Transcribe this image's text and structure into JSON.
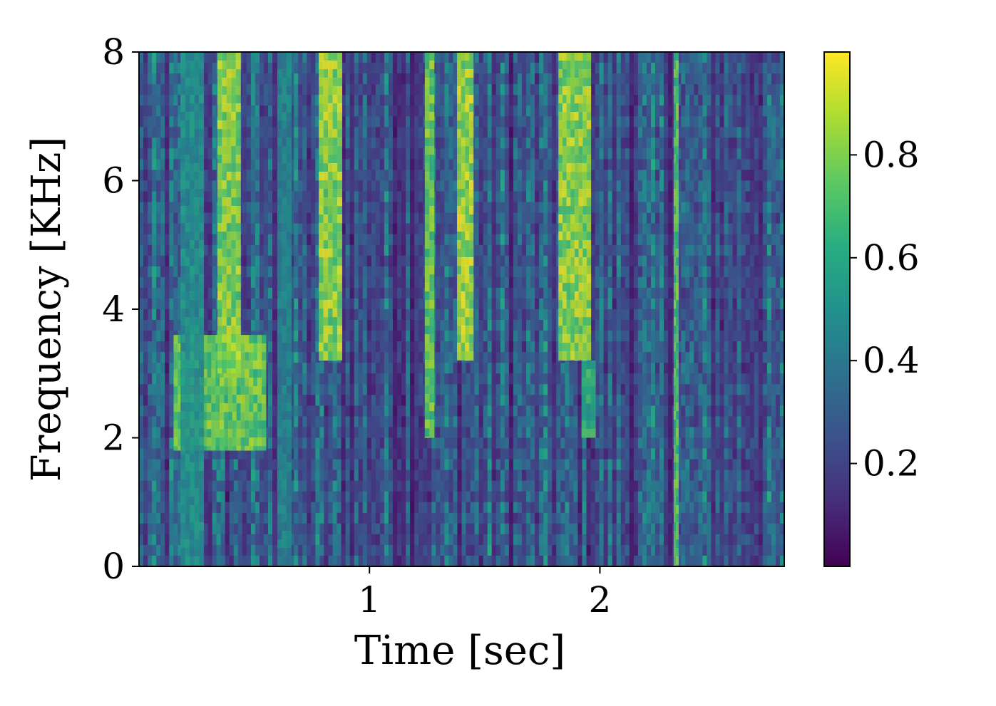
{
  "chart_data": {
    "type": "heatmap",
    "title": "",
    "xlabel": "Time [sec]",
    "ylabel": "Frequency [KHz]",
    "xlim": [
      0,
      2.8
    ],
    "ylim": [
      0,
      8
    ],
    "x_ticks": [
      1,
      2
    ],
    "x_tick_labels": [
      "1",
      "2"
    ],
    "y_ticks": [
      0,
      2,
      4,
      6,
      8
    ],
    "y_tick_labels": [
      "0",
      "2",
      "4",
      "6",
      "8"
    ],
    "colormap": "viridis",
    "colorbar": {
      "range": [
        0,
        1
      ],
      "ticks": [
        0.2,
        0.4,
        0.6,
        0.8
      ],
      "tick_labels": [
        "0.2",
        "0.4",
        "0.6",
        "0.8"
      ]
    },
    "energy_bands": [
      {
        "t_start": 0.15,
        "t_end": 0.55,
        "f_low": 1.8,
        "f_high": 3.6,
        "level": 0.85
      },
      {
        "t_start": 0.34,
        "t_end": 0.44,
        "f_low": 3.0,
        "f_high": 8.0,
        "level": 0.9
      },
      {
        "t_start": 0.18,
        "t_end": 0.28,
        "f_low": 0.0,
        "f_high": 8.0,
        "level": 0.55
      },
      {
        "t_start": 0.6,
        "t_end": 0.66,
        "f_low": 0.0,
        "f_high": 8.0,
        "level": 0.5
      },
      {
        "t_start": 0.78,
        "t_end": 0.88,
        "f_low": 3.2,
        "f_high": 8.0,
        "level": 0.92
      },
      {
        "t_start": 1.24,
        "t_end": 1.28,
        "f_low": 2.0,
        "f_high": 8.0,
        "level": 0.85
      },
      {
        "t_start": 1.38,
        "t_end": 1.45,
        "f_low": 3.2,
        "f_high": 8.0,
        "level": 0.95
      },
      {
        "t_start": 1.82,
        "t_end": 1.96,
        "f_low": 3.2,
        "f_high": 8.0,
        "level": 0.92
      },
      {
        "t_start": 1.92,
        "t_end": 1.98,
        "f_low": 2.0,
        "f_high": 3.2,
        "level": 0.7
      },
      {
        "t_start": 2.32,
        "t_end": 2.34,
        "f_low": 0.0,
        "f_high": 8.0,
        "level": 0.8
      }
    ]
  }
}
